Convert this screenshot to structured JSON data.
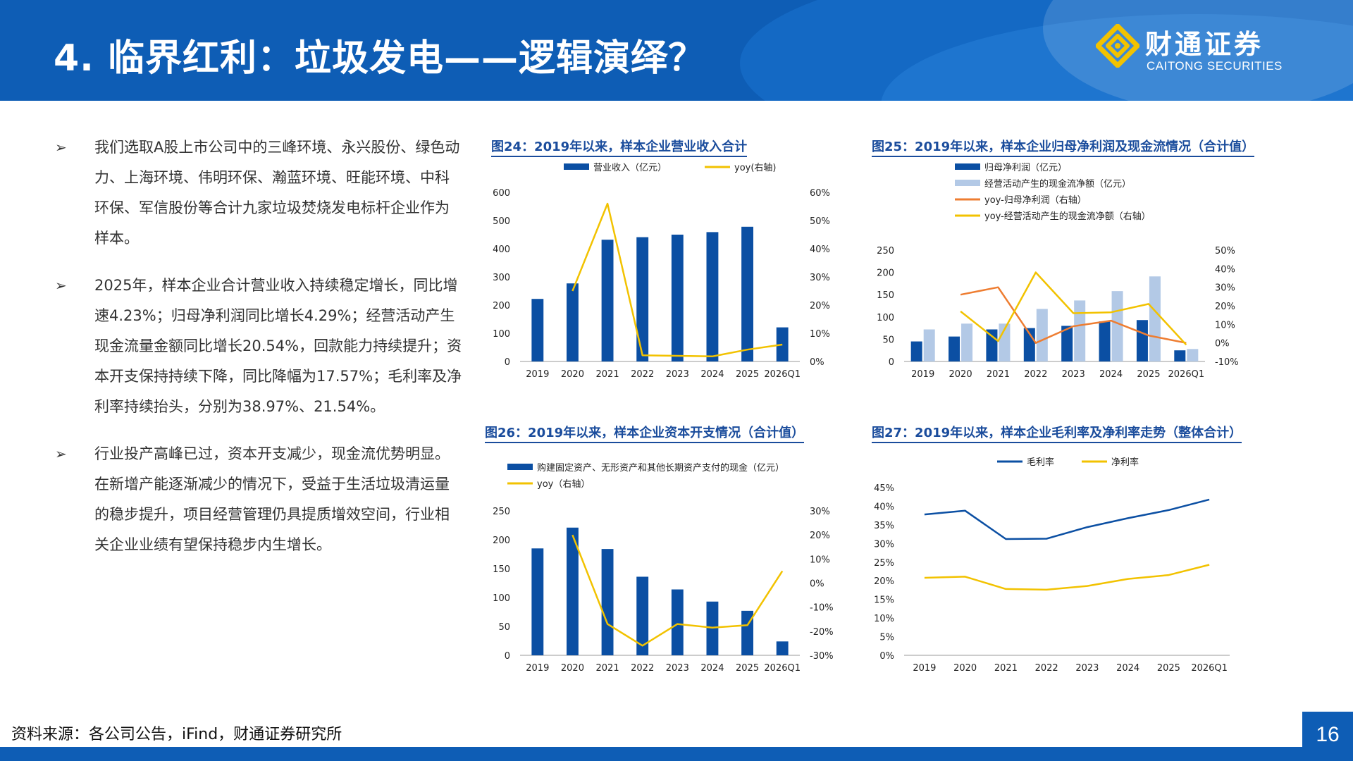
{
  "header": {
    "title": "4. 临界红利：垃圾发电——逻辑演绎？",
    "logo_cn": "财通证券",
    "logo_en": "CAITONG SECURITIES",
    "colors": {
      "primary": "#0e5db5",
      "bar_dark": "#0b4fa3",
      "bar_light": "#b3c9e6",
      "line_yellow": "#f2c200",
      "line_orange": "#ee7d31"
    }
  },
  "bullets": [
    "我们选取A股上市公司中的三峰环境、永兴股份、绿色动力、上海环境、伟明环保、瀚蓝环境、旺能环境、中科环保、军信股份等合计九家垃圾焚烧发电标杆企业作为样本。",
    "2025年，样本企业合计营业收入持续稳定增长，同比增速4.23%；归母净利润同比增长4.29%；经营活动产生现金流量金额同比增长20.54%，回款能力持续提升；资本开支保持持续下降，同比降幅为17.57%；毛利率及净利率持续抬头，分别为38.97%、21.54%。",
    "行业投产高峰已过，资本开支减少，现金流优势明显。在新增产能逐渐减少的情况下，受益于生活垃圾清运量的稳步提升，项目经营管理仍具提质增效空间，行业相关企业业绩有望保持稳步内生增长。"
  ],
  "bullet_symbol": "➢",
  "footer": {
    "source": "资料来源：各公司公告，iFind，财通证券研究所",
    "page": "16"
  },
  "chart_data": [
    {
      "id": "c24",
      "type": "bar",
      "title": "图24：2019年以来，样本企业营业收入合计",
      "categories": [
        "2019",
        "2020",
        "2021",
        "2022",
        "2023",
        "2024",
        "2025",
        "2026Q1"
      ],
      "series": [
        {
          "name": "营业收入（亿元）",
          "kind": "bar",
          "axis": "left",
          "color": "#0b4fa3",
          "values": [
            222,
            277,
            432,
            441,
            450,
            459,
            478,
            121
          ]
        },
        {
          "name": "yoy(右轴)",
          "kind": "line",
          "axis": "right",
          "color": "#f2c200",
          "values": [
            null,
            25,
            56,
            2.2,
            2.0,
            1.8,
            4.2,
            6.0
          ]
        }
      ],
      "left_axis": {
        "min": 0,
        "max": 600,
        "step": 100,
        "ticks": [
          "0",
          "100",
          "200",
          "300",
          "400",
          "500",
          "600"
        ]
      },
      "right_axis": {
        "min": 0,
        "max": 60,
        "step": 10,
        "ticks": [
          "0%",
          "10%",
          "20%",
          "30%",
          "40%",
          "50%",
          "60%"
        ]
      },
      "legend_position": "top"
    },
    {
      "id": "c25",
      "type": "bar",
      "title": "图25：2019年以来，样本企业归母净利润及现金流情况（合计值）",
      "categories": [
        "2019",
        "2020",
        "2021",
        "2022",
        "2023",
        "2024",
        "2025",
        "2026Q1"
      ],
      "series": [
        {
          "name": "归母净利润（亿元）",
          "kind": "bar",
          "axis": "left",
          "color": "#0b4fa3",
          "values": [
            45,
            56,
            72,
            75,
            80,
            90,
            93,
            25
          ]
        },
        {
          "name": "经营活动产生的现金流净额（亿元）",
          "kind": "bar",
          "axis": "left",
          "color": "#b3c9e6",
          "values": [
            72,
            85,
            85,
            118,
            137,
            158,
            191,
            28
          ]
        },
        {
          "name": "yoy-归母净利润（右轴）",
          "kind": "line",
          "axis": "right",
          "color": "#ee7d31",
          "values": [
            null,
            26,
            30,
            0,
            9,
            12,
            4,
            0
          ]
        },
        {
          "name": "yoy-经营活动产生的现金流净额（右轴）",
          "kind": "line",
          "axis": "right",
          "color": "#f2c200",
          "values": [
            null,
            17,
            1,
            38,
            16,
            16.5,
            21,
            -1
          ]
        }
      ],
      "left_axis": {
        "min": 0,
        "max": 250,
        "step": 50,
        "ticks": [
          "0",
          "50",
          "100",
          "150",
          "200",
          "250"
        ]
      },
      "right_axis": {
        "min": -10,
        "max": 50,
        "step": 10,
        "ticks": [
          "-10%",
          "0%",
          "10%",
          "20%",
          "30%",
          "40%",
          "50%"
        ]
      },
      "legend_position": "top"
    },
    {
      "id": "c26",
      "type": "bar",
      "title": "图26：2019年以来，样本企业资本开支情况（合计值）",
      "categories": [
        "2019",
        "2020",
        "2021",
        "2022",
        "2023",
        "2024",
        "2025",
        "2026Q1"
      ],
      "series": [
        {
          "name": "购建固定资产、无形资产和其他长期资产支付的现金（亿元）",
          "kind": "bar",
          "axis": "left",
          "color": "#0b4fa3",
          "values": [
            185,
            221,
            184,
            136,
            114,
            93,
            77,
            24
          ]
        },
        {
          "name": "yoy（右轴）",
          "kind": "line",
          "axis": "right",
          "color": "#f2c200",
          "values": [
            null,
            20,
            -17,
            -26,
            -17,
            -18.5,
            -17.5,
            5
          ]
        }
      ],
      "left_axis": {
        "min": 0,
        "max": 250,
        "step": 50,
        "ticks": [
          "0",
          "50",
          "100",
          "150",
          "200",
          "250"
        ]
      },
      "right_axis": {
        "min": -30,
        "max": 30,
        "step": 10,
        "ticks": [
          "-30%",
          "-20%",
          "-10%",
          "0%",
          "10%",
          "20%",
          "30%"
        ]
      },
      "legend_position": "top"
    },
    {
      "id": "c27",
      "type": "line",
      "title": "图27：2019年以来，样本企业毛利率及净利率走势（整体合计）",
      "categories": [
        "2019",
        "2020",
        "2021",
        "2022",
        "2023",
        "2024",
        "2025",
        "2026Q1"
      ],
      "series": [
        {
          "name": "毛利率",
          "kind": "line",
          "axis": "left",
          "color": "#0b4fa3",
          "values": [
            37.8,
            38.8,
            31.2,
            31.3,
            34.4,
            36.8,
            38.97,
            41.8
          ]
        },
        {
          "name": "净利率",
          "kind": "line",
          "axis": "left",
          "color": "#f2c200",
          "values": [
            20.8,
            21.1,
            17.8,
            17.6,
            18.6,
            20.5,
            21.54,
            24.3
          ]
        }
      ],
      "left_axis": {
        "min": 0,
        "max": 45,
        "step": 5,
        "ticks": [
          "0%",
          "5%",
          "10%",
          "15%",
          "20%",
          "25%",
          "30%",
          "35%",
          "40%",
          "45%"
        ]
      },
      "legend_position": "top"
    }
  ]
}
